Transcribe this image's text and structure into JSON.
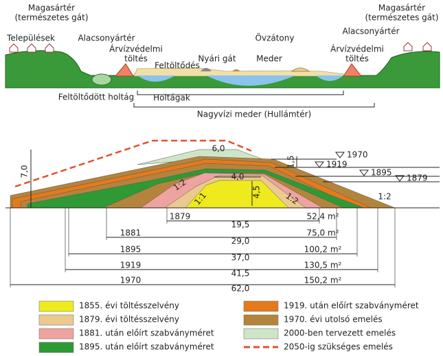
{
  "top_diagram": {
    "left_highland": [
      "Magasártér",
      "(természetes gát)"
    ],
    "settlements": "Települések",
    "left_floodplain": "Alacsonyártér",
    "left_levee": [
      "Árvízvédelmi",
      "töltés"
    ],
    "summer_dike": "Nyári gát",
    "silting": "Feltöltődés",
    "point_bar": "Övzátony",
    "channel": "Meder",
    "right_highland": [
      "Magasártér",
      "(természetes gát)"
    ],
    "right_floodplain": "Alacsonyártér",
    "right_levee": [
      "Árvízvédelmi",
      "töltés"
    ],
    "filled_oxbow": "Feltöltődött holtág",
    "oxbows": "Holtágak",
    "floodway": "Nagyvízi meder (Hullámtér)"
  },
  "cross_section": {
    "dimensions": {
      "total_height": "7,0",
      "crest_2000": "6,0",
      "raise_1970": "1,5",
      "crest_1855": "4,0",
      "height_1855": "4,5"
    },
    "slopes": [
      "1:2",
      "1:1",
      "1:2",
      "1:2"
    ],
    "water_levels": [
      "1970",
      "1919",
      "1895",
      "1879"
    ],
    "base_widths": [
      {
        "year": "1879",
        "width": "19,5",
        "area": "52,4 m²"
      },
      {
        "year": "1881",
        "width": "29,0",
        "area": "75,0 m²"
      },
      {
        "year": "1895",
        "width": "37,0",
        "area": "100,2 m²"
      },
      {
        "year": "1919",
        "width": "41,5",
        "area": "130,5 m²"
      },
      {
        "year": "1970",
        "width": "62,0",
        "area": "150,2 m²"
      }
    ]
  },
  "legend": [
    {
      "label": "1855. évi töltésszelvény",
      "color": "#eeea1e"
    },
    {
      "label": "1879. évi töltésszelvény",
      "color": "#ecc98e"
    },
    {
      "label": "1881. után előírt szabványméret",
      "color": "#eea3a0"
    },
    {
      "label": "1895. után előírt szabványméret",
      "color": "#2f9a35"
    },
    {
      "label": "1919. után előírt szabványméret",
      "color": "#e57a1c"
    },
    {
      "label": "1970. évi utolsó emelés",
      "color": "#b5843c"
    },
    {
      "label": "2000-ben tervezett emelés",
      "color": "#cfe5c7"
    },
    {
      "label": "2050-ig szükséges emelés",
      "color": "#e0502c"
    }
  ]
}
